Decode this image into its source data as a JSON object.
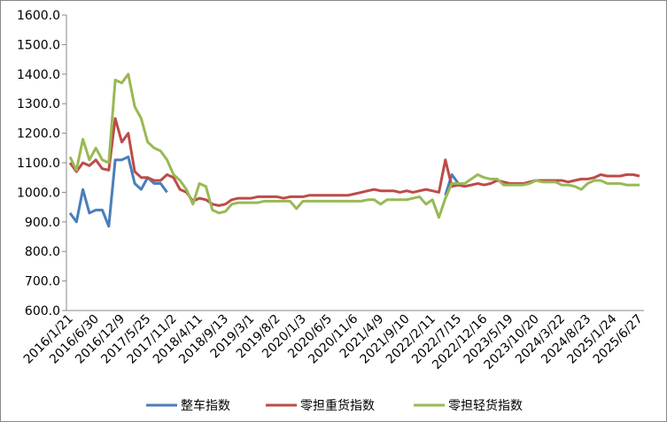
{
  "chart_data": {
    "type": "line",
    "categories": [
      "2016/1/21",
      null,
      null,
      null,
      "2016/6/30",
      null,
      null,
      null,
      "2016/12/9",
      null,
      null,
      null,
      "2017/5/25",
      null,
      null,
      null,
      "2017/11/2",
      null,
      null,
      null,
      "2018/4/11",
      null,
      null,
      null,
      "2018/9/13",
      null,
      null,
      null,
      "2019/3/1",
      null,
      null,
      null,
      "2019/8/2",
      null,
      null,
      null,
      "2020/1/3",
      null,
      null,
      null,
      "2020/6/5",
      null,
      null,
      null,
      "2020/11/6",
      null,
      null,
      null,
      "2021/4/9",
      null,
      null,
      null,
      "2021/9/10",
      null,
      null,
      null,
      "2022/2/11",
      null,
      null,
      null,
      "2022/7/15",
      null,
      null,
      null,
      "2022/12/16",
      null,
      null,
      null,
      "2023/5/19",
      null,
      null,
      null,
      "2023/10/20",
      null,
      null,
      null,
      "2024/3/22",
      null,
      null,
      null,
      "2024/8/23",
      null,
      null,
      null,
      "2025/1/24",
      null,
      null,
      null,
      "2025/6/27"
    ],
    "series": [
      {
        "name": "整车指数",
        "color": "#4a7ebb",
        "values": [
          930,
          900,
          1010,
          930,
          940,
          940,
          885,
          1110,
          1110,
          1120,
          1030,
          1010,
          1050,
          1030,
          1030,
          1000,
          null,
          null,
          null,
          null,
          null,
          null,
          null,
          null,
          null,
          null,
          null,
          null,
          null,
          null,
          null,
          null,
          null,
          null,
          null,
          null,
          null,
          null,
          null,
          null,
          null,
          null,
          null,
          null,
          null,
          null,
          null,
          null,
          null,
          null,
          null,
          null,
          null,
          null,
          null,
          null,
          null,
          null,
          990,
          1060,
          1030,
          null,
          null,
          null,
          null,
          null,
          null,
          null,
          null,
          null,
          null,
          null,
          null,
          null,
          null,
          null,
          null,
          null,
          null,
          null,
          null,
          null,
          null,
          null,
          null,
          null,
          null,
          null,
          null
        ]
      },
      {
        "name": "零担重货指数",
        "color": "#be4b48",
        "values": [
          1100,
          1070,
          1100,
          1090,
          1110,
          1080,
          1075,
          1250,
          1170,
          1200,
          1070,
          1050,
          1050,
          1040,
          1040,
          1060,
          1050,
          1010,
          1000,
          970,
          980,
          975,
          960,
          955,
          960,
          975,
          980,
          980,
          980,
          985,
          985,
          985,
          985,
          980,
          985,
          985,
          985,
          990,
          990,
          990,
          990,
          990,
          990,
          990,
          995,
          1000,
          1005,
          1010,
          1005,
          1005,
          1005,
          1000,
          1005,
          1000,
          1005,
          1010,
          1005,
          1000,
          1110,
          1020,
          1025,
          1020,
          1025,
          1030,
          1025,
          1030,
          1040,
          1035,
          1030,
          1030,
          1030,
          1035,
          1040,
          1040,
          1040,
          1040,
          1040,
          1035,
          1040,
          1045,
          1045,
          1050,
          1060,
          1055,
          1055,
          1055,
          1060,
          1060,
          1055
        ]
      },
      {
        "name": "零担轻货指数",
        "color": "#98b954",
        "values": [
          1120,
          1075,
          1180,
          1110,
          1150,
          1110,
          1100,
          1380,
          1370,
          1400,
          1290,
          1250,
          1170,
          1150,
          1140,
          1110,
          1060,
          1040,
          1010,
          960,
          1030,
          1020,
          940,
          930,
          935,
          960,
          965,
          965,
          965,
          965,
          970,
          970,
          970,
          970,
          970,
          945,
          970,
          970,
          970,
          970,
          970,
          970,
          970,
          970,
          970,
          970,
          975,
          975,
          960,
          975,
          975,
          975,
          975,
          980,
          985,
          960,
          975,
          915,
          980,
          1030,
          1030,
          1030,
          1045,
          1060,
          1050,
          1045,
          1045,
          1025,
          1025,
          1025,
          1025,
          1030,
          1040,
          1035,
          1035,
          1035,
          1025,
          1025,
          1020,
          1010,
          1030,
          1040,
          1040,
          1030,
          1030,
          1030,
          1025,
          1025,
          1025
        ]
      }
    ],
    "ylim": [
      600,
      1600
    ],
    "yticks": [
      {
        "value": 600,
        "label": "600.0"
      },
      {
        "value": 700,
        "label": "700.0"
      },
      {
        "value": 800,
        "label": "800.0"
      },
      {
        "value": 900,
        "label": "900.0"
      },
      {
        "value": 1000,
        "label": "1000.0"
      },
      {
        "value": 1100,
        "label": "1100.0"
      },
      {
        "value": 1200,
        "label": "1200.0"
      },
      {
        "value": 1300,
        "label": "1300.0"
      },
      {
        "value": 1400,
        "label": "1400.0"
      },
      {
        "value": 1500,
        "label": "1500.0"
      },
      {
        "value": 1600,
        "label": "1600.0"
      }
    ],
    "grid": false,
    "legend": "bottom"
  }
}
